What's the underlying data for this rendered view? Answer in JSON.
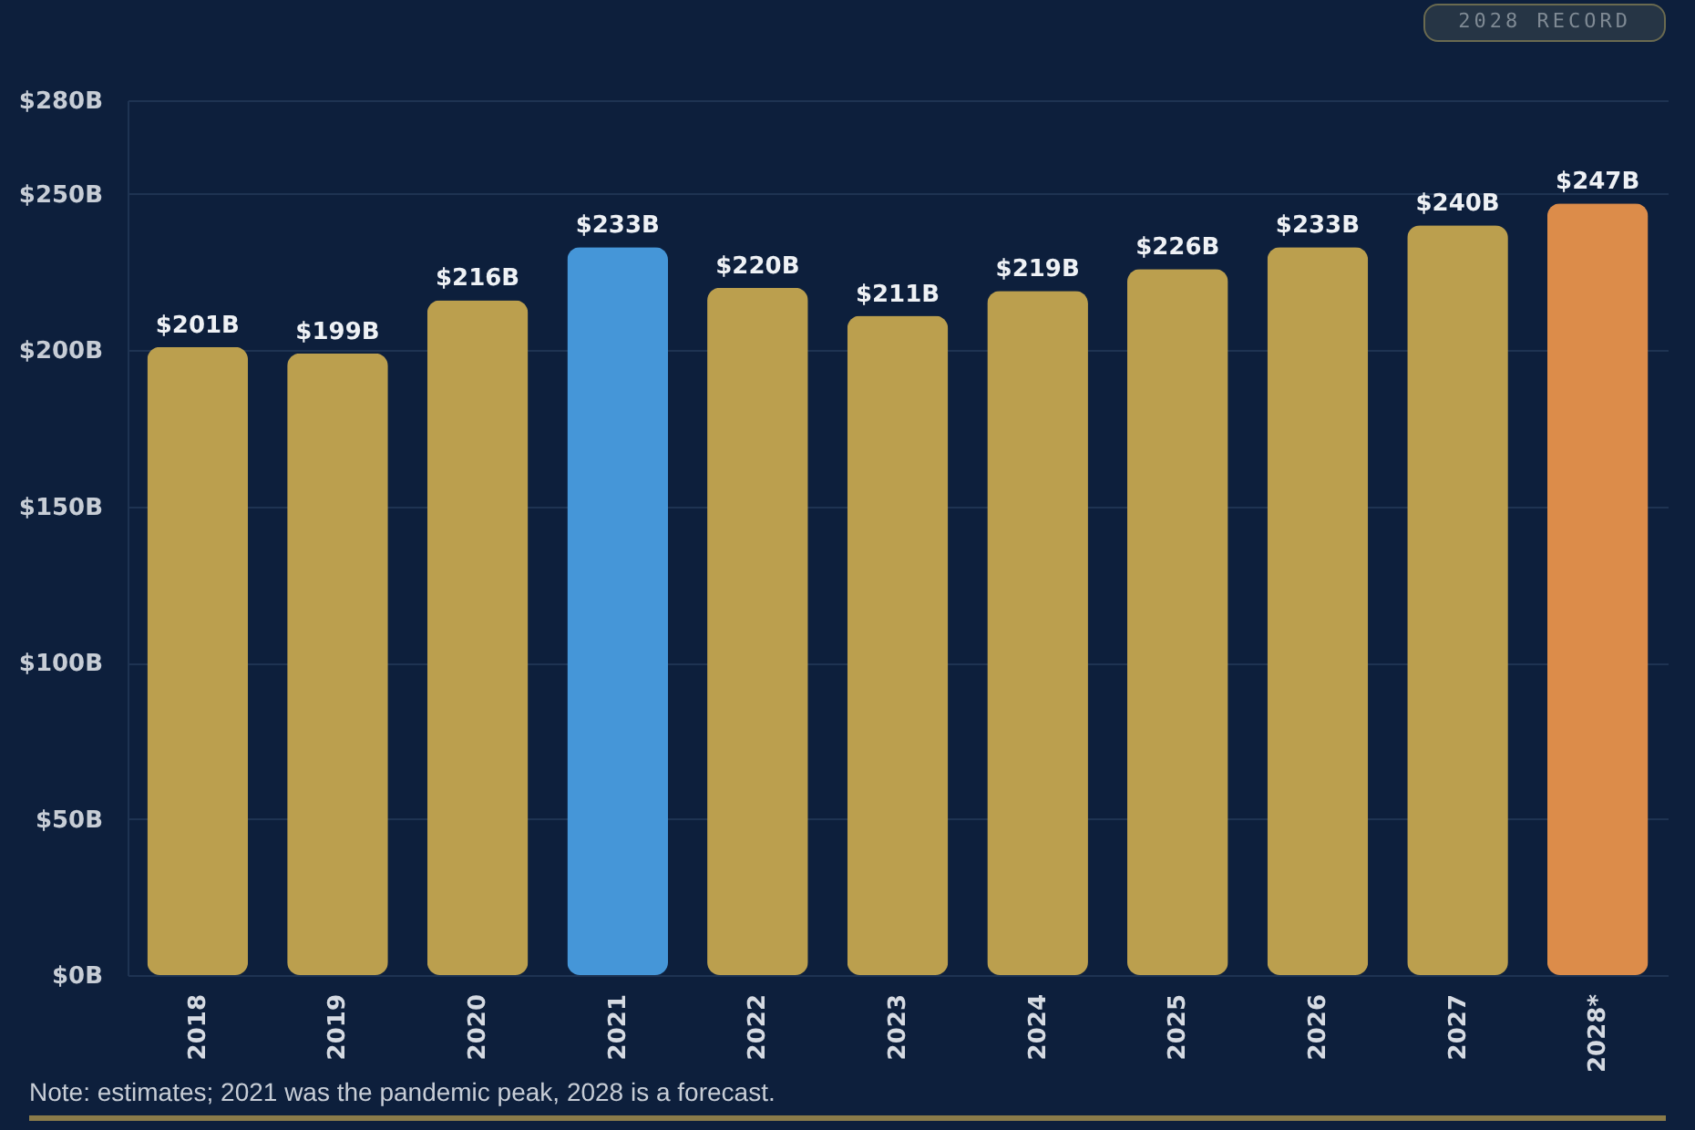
{
  "chart_data": {
    "type": "bar",
    "categories": [
      "2018",
      "2019",
      "2020",
      "2021",
      "2022",
      "2023",
      "2024",
      "2025",
      "2026",
      "2027",
      "2028*"
    ],
    "values": [
      201,
      199,
      216,
      233,
      220,
      211,
      219,
      226,
      233,
      240,
      247
    ],
    "value_labels": [
      "$201B",
      "$199B",
      "$216B",
      "$233B",
      "$220B",
      "$211B",
      "$219B",
      "$226B",
      "$233B",
      "$240B",
      "$247B"
    ],
    "colors": [
      "#bb9f4e",
      "#bb9f4e",
      "#bb9f4e",
      "#4596d8",
      "#bb9f4e",
      "#bb9f4e",
      "#bb9f4e",
      "#bb9f4e",
      "#bb9f4e",
      "#bb9f4e",
      "#dc8c4a"
    ],
    "ylim": [
      0,
      280
    ],
    "yticks": [
      {
        "value": 0,
        "label": "$0B"
      },
      {
        "value": 50,
        "label": "$50B"
      },
      {
        "value": 100,
        "label": "$100B"
      },
      {
        "value": 150,
        "label": "$150B"
      },
      {
        "value": 200,
        "label": "$200B"
      },
      {
        "value": 250,
        "label": "$250B"
      },
      {
        "value": 280,
        "label": "$280B"
      }
    ],
    "grid": "y",
    "annotations": [
      "2028 RECORD",
      "Note: estimates; 2021 was the pandemic peak, 2028 is a forecast."
    ]
  }
}
